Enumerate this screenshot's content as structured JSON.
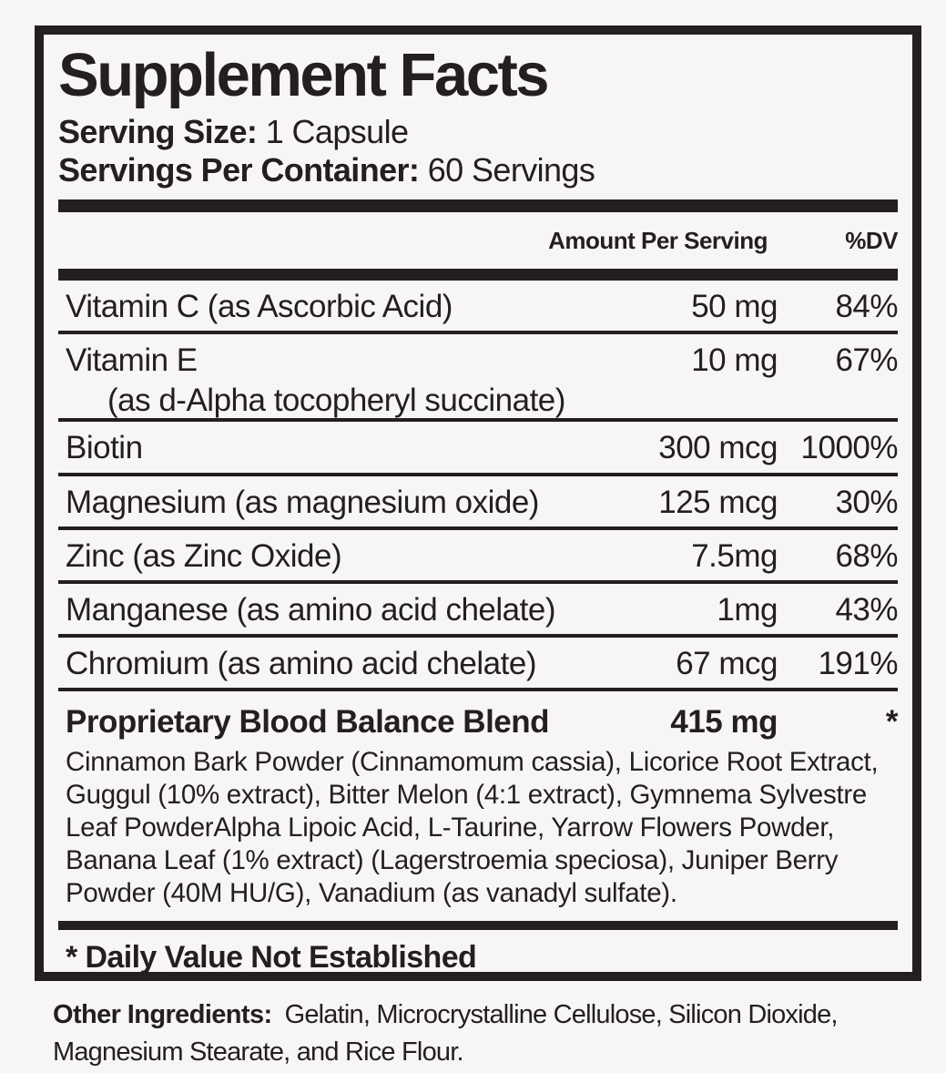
{
  "colors": {
    "ink": "#231f20",
    "paper": "#f7f5f6"
  },
  "panel": {
    "title": "Supplement Facts",
    "serving_size": {
      "label": "Serving Size:",
      "value": "1 Capsule"
    },
    "servings_per_container": {
      "label": "Servings Per Container:",
      "value": "60 Servings"
    },
    "columns": {
      "amount": "Amount Per Serving",
      "dv": "%DV"
    },
    "rows": [
      {
        "name": "Vitamin C (as Ascorbic Acid)",
        "amount": "50 mg",
        "dv": "84%"
      },
      {
        "name": "Vitamin E",
        "sub": "(as d-Alpha tocopheryl succinate)",
        "amount": "10 mg",
        "dv": "67%"
      },
      {
        "name": "Biotin",
        "amount": "300 mcg",
        "dv": "1000%"
      },
      {
        "name": "Magnesium (as magnesium oxide)",
        "amount": "125 mcg",
        "dv": "30%"
      },
      {
        "name": "Zinc (as Zinc Oxide)",
        "amount": "7.5mg",
        "dv": "68%"
      },
      {
        "name": "Manganese (as amino acid chelate)",
        "amount": "1mg",
        "dv": "43%"
      },
      {
        "name": "Chromium (as amino acid chelate)",
        "amount": "67 mcg",
        "dv": "191%"
      }
    ],
    "blend": {
      "name": "Proprietary Blood Balance Blend",
      "amount": "415 mg",
      "dv": "*",
      "description": "Cinnamon Bark Powder (Cinnamomum cassia), Licorice Root Extract, Guggul (10% extract), Bitter Melon (4:1 extract), Gymnema Sylvestre Leaf PowderAlpha Lipoic Acid, L-Taurine, Yarrow Flowers Powder, Banana Leaf (1% extract) (Lagerstroemia speciosa), Juniper Berry Powder (40M HU/G), Vanadium (as vanadyl sulfate)."
    },
    "footnote": "* Daily Value Not Established"
  },
  "other_ingredients": {
    "label": "Other Ingredients:",
    "value": "Gelatin, Microcrystalline Cellulose, Silicon Dioxide, Magnesium Stearate, and Rice Flour."
  }
}
